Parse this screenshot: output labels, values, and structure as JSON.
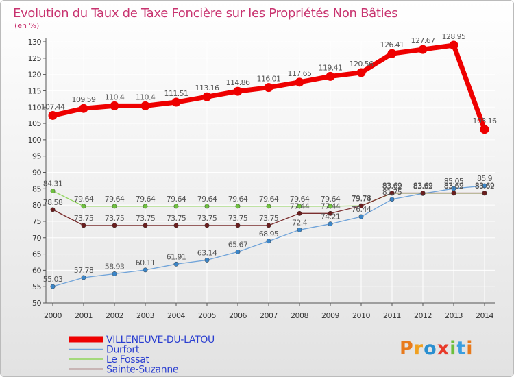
{
  "colors": {
    "title": "#c8336f",
    "legend_text": "#2a3ed0",
    "axis": "#555555",
    "grid": "#ffffff",
    "bg_top": "#ffffff",
    "bg_bottom": "#e4e4e4"
  },
  "logo": {
    "text": "Proxiti"
  },
  "chart_data": {
    "type": "line",
    "title": "Evolution du Taux de Taxe Foncière sur les Propriétés Non Bâties",
    "subtitle": "(en %)",
    "xlabel": "",
    "ylabel": "",
    "ylim": [
      50,
      130
    ],
    "y_ticks": [
      50,
      55,
      60,
      65,
      70,
      75,
      80,
      85,
      90,
      95,
      100,
      105,
      110,
      115,
      120,
      125,
      130
    ],
    "x": [
      "2000",
      "2001",
      "2002",
      "2003",
      "2004",
      "2005",
      "2006",
      "2007",
      "2008",
      "2009",
      "2010",
      "2011",
      "2012",
      "2013",
      "2014"
    ],
    "grid": true,
    "legend_position": "bottom-left",
    "series": [
      {
        "name": "VILLENEUVE-DU-LATOU",
        "color": "#ee0000",
        "point_color": "#ee0000",
        "width": "thick",
        "values": [
          107.44,
          109.59,
          110.4,
          110.4,
          111.51,
          113.16,
          114.86,
          116.01,
          117.65,
          119.41,
          120.56,
          126.41,
          127.67,
          128.95,
          103.16
        ],
        "labels": [
          "107.44",
          "109.59",
          "110.4",
          "110.4",
          "111.51",
          "113.16",
          "114.86",
          "116.01",
          "117.65",
          "119.41",
          "120.56",
          "126.41",
          "127.67",
          "128.95",
          "103.16"
        ]
      },
      {
        "name": "Durfort",
        "color": "#6fa3d9",
        "point_color": "#3c86c8",
        "width": "thin",
        "values": [
          55.03,
          57.78,
          58.93,
          60.11,
          61.91,
          63.14,
          65.67,
          68.95,
          72.4,
          74.21,
          76.44,
          81.75,
          83.53,
          85.05,
          85.9
        ],
        "labels": [
          "55.03",
          "57.78",
          "58.93",
          "60.11",
          "61.91",
          "63.14",
          "65.67",
          "68.95",
          "72.4",
          "74.21",
          "76.44",
          "81.75",
          "83.53",
          "85.05",
          "85.9"
        ]
      },
      {
        "name": "Le Fossat",
        "color": "#8fd65a",
        "point_color": "#6fc040",
        "width": "thin",
        "values": [
          84.31,
          79.64,
          79.64,
          79.64,
          79.64,
          79.64,
          79.64,
          79.64,
          79.64,
          79.64,
          79.78,
          83.62,
          83.62,
          83.62,
          83.62
        ],
        "labels": [
          "84.31",
          "79.64",
          "79.64",
          "79.64",
          "79.64",
          "79.64",
          "79.64",
          "79.64",
          "79.64",
          "79.64",
          "79.78",
          "83.62",
          "83.62",
          "83.62",
          "83.62"
        ]
      },
      {
        "name": "Sainte-Suzanne",
        "color": "#7b2e2e",
        "point_color": "#6a1e1e",
        "width": "thin",
        "values": [
          78.58,
          73.75,
          73.75,
          73.75,
          73.75,
          73.75,
          73.75,
          73.75,
          77.44,
          77.44,
          79.74,
          83.69,
          83.69,
          83.69,
          83.69
        ],
        "labels": [
          "78.58",
          "73.75",
          "73.75",
          "73.75",
          "73.75",
          "73.75",
          "73.75",
          "73.75",
          "77.44",
          "77.44",
          "79.74",
          "83.69",
          "83.69",
          "83.69",
          "83.69"
        ]
      }
    ]
  }
}
